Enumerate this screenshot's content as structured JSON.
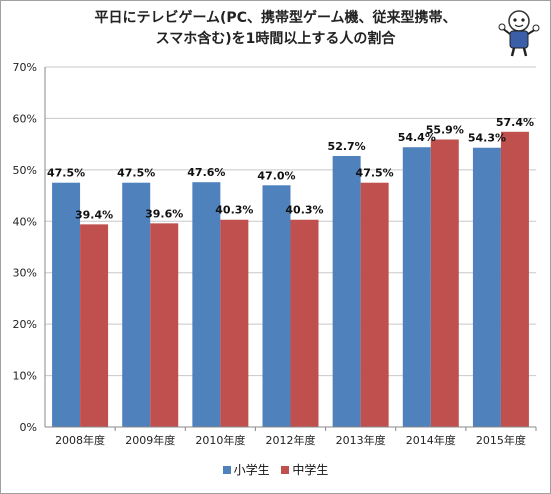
{
  "title_lines": [
    "平日にテレビゲーム(PC、携帯型ゲーム機、従来型携帯、",
    "スマホ含む)を1時間以上する人の割合"
  ],
  "chart_data": {
    "type": "bar",
    "categories": [
      "2008年度",
      "2009年度",
      "2010年度",
      "2012年度",
      "2013年度",
      "2014年度",
      "2015年度"
    ],
    "series": [
      {
        "name": "小学生",
        "color": "#4f81bd",
        "values": [
          47.5,
          47.5,
          47.6,
          47.0,
          52.7,
          54.4,
          54.3
        ],
        "labels": [
          "47.5%",
          "47.5%",
          "47.6%",
          "47.0%",
          "52.7%",
          "54.4%",
          "54.3%"
        ]
      },
      {
        "name": "中学生",
        "color": "#c0504d",
        "values": [
          39.4,
          39.6,
          40.3,
          40.3,
          47.5,
          55.9,
          57.4
        ],
        "labels": [
          "39.4%",
          "39.6%",
          "40.3%",
          "40.3%",
          "47.5%",
          "55.9%",
          "57.4%"
        ]
      }
    ],
    "yticks": [
      "0%",
      "10%",
      "20%",
      "30%",
      "40%",
      "50%",
      "60%",
      "70%"
    ],
    "ylim": [
      0,
      70
    ],
    "grid": true,
    "legend_position": "bottom"
  },
  "colors": {
    "gridline": "#c8c8c8",
    "axis": "#888888"
  },
  "mascot_icon": "mascot-character-icon"
}
